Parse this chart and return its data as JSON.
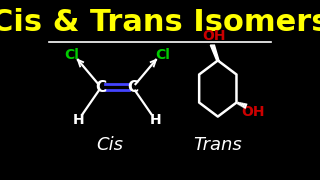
{
  "title": "Cis & Trans Isomers",
  "title_color": "#FFFF00",
  "title_fontsize": 22,
  "background_color": "#000000",
  "separator_color": "#FFFFFF",
  "cis_label": "Cis",
  "trans_label": "Trans",
  "label_color": "#FFFFFF",
  "label_fontsize": 13,
  "cl_color": "#00CC00",
  "oh_color": "#CC0000",
  "c_color": "#FFFFFF",
  "h_color": "#FFFFFF",
  "double_bond_color": "#4444FF",
  "structure_color": "#FFFFFF"
}
